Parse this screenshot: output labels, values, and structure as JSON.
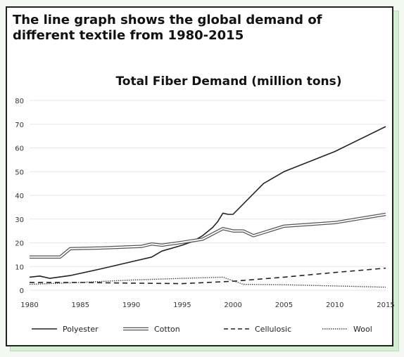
{
  "page": {
    "heading": "The line graph shows the global demand of different textile from 1980-2015"
  },
  "chart_data": {
    "type": "line",
    "title": "Total Fiber Demand (million tons)",
    "xlabel": "",
    "ylabel": "",
    "xlim": [
      1980,
      2015
    ],
    "ylim": [
      0,
      80
    ],
    "x_ticks": [
      1980,
      1985,
      1990,
      1995,
      2000,
      2005,
      2010,
      2015
    ],
    "y_ticks": [
      0,
      10,
      20,
      30,
      40,
      50,
      60,
      70,
      80
    ],
    "grid": "horizontal",
    "legend_position": "bottom",
    "series": [
      {
        "name": "Polyester",
        "style": "solid",
        "color": "#222222",
        "x": [
          1980,
          1981,
          1982,
          1984,
          1987,
          1990,
          1992,
          1993,
          1995,
          1996,
          1997,
          1998,
          1998.5,
          1999,
          1999.5,
          2000,
          2003,
          2005,
          2010,
          2015
        ],
        "y": [
          5.5,
          6,
          5,
          6.2,
          9,
          12,
          14,
          16.5,
          19,
          20.5,
          23,
          26.5,
          29,
          32.5,
          32,
          32,
          45,
          50,
          58.5,
          69
        ]
      },
      {
        "name": "Cotton",
        "style": "double",
        "color": "#555555",
        "x": [
          1980,
          1983,
          1984,
          1987,
          1991,
          1992,
          1993,
          1995,
          1997,
          1999,
          2000,
          2001,
          2002,
          2005,
          2010,
          2015
        ],
        "y": [
          14,
          14,
          17.5,
          17.8,
          18.5,
          19.5,
          19,
          20.2,
          21.5,
          26,
          25,
          25,
          23,
          27,
          28.5,
          32
        ]
      },
      {
        "name": "Cellulosic",
        "style": "dashed",
        "color": "#222222",
        "x": [
          1980,
          1985,
          1990,
          1995,
          2000,
          2005,
          2010,
          2015
        ],
        "y": [
          3.3,
          3.3,
          3.0,
          2.8,
          3.8,
          5.5,
          7.5,
          9.3
        ]
      },
      {
        "name": "Wool",
        "style": "dotted",
        "color": "#444444",
        "x": [
          1980,
          1985,
          1990,
          1995,
          1999,
          2000,
          2001,
          2005,
          2010,
          2015
        ],
        "y": [
          2.5,
          3.3,
          4.3,
          5.0,
          5.5,
          4.0,
          2.5,
          2.3,
          1.8,
          1.3
        ]
      }
    ]
  }
}
